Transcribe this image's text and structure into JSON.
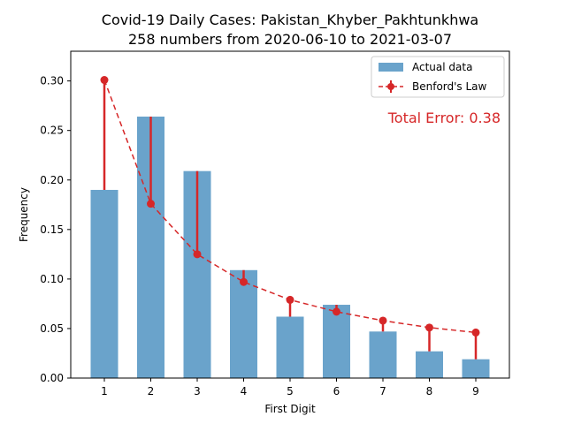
{
  "chart_data": {
    "type": "bar",
    "title_line1": "Covid-19 Daily Cases: Pakistan_Khyber_Pakhtunkhwa",
    "title_line2": "258 numbers from 2020-06-10 to 2021-03-07",
    "xlabel": "First Digit",
    "ylabel": "Frequency",
    "categories": [
      "1",
      "2",
      "3",
      "4",
      "5",
      "6",
      "7",
      "8",
      "9"
    ],
    "ylim": [
      0,
      0.33
    ],
    "yticks": [
      0.0,
      0.05,
      0.1,
      0.15,
      0.2,
      0.25,
      0.3
    ],
    "ytick_labels": [
      "0.00",
      "0.05",
      "0.10",
      "0.15",
      "0.20",
      "0.25",
      "0.30"
    ],
    "series": [
      {
        "name": "Actual data",
        "kind": "bar",
        "color": "#6aa3cb",
        "values": [
          0.19,
          0.264,
          0.209,
          0.109,
          0.062,
          0.074,
          0.047,
          0.027,
          0.019
        ]
      },
      {
        "name": "Benford's Law",
        "kind": "line-dashed-markers",
        "color": "#d62728",
        "values": [
          0.301,
          0.176,
          0.125,
          0.097,
          0.079,
          0.067,
          0.058,
          0.051,
          0.046
        ]
      }
    ],
    "annotation": "Total Error: 0.38",
    "annotation_color": "#d62728",
    "legend_position": "top-right",
    "grid": false
  }
}
